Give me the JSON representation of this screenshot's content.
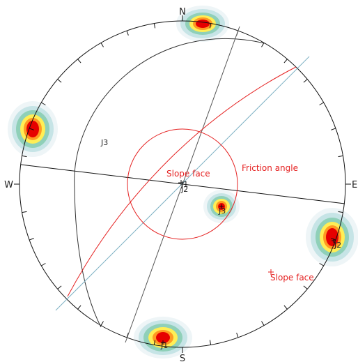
{
  "directions": {
    "north": "N",
    "south": "S",
    "east": "E",
    "west": "W"
  },
  "labels": {
    "j3_great_circle": "J3",
    "slope_face_center": "Slope face",
    "friction_angle": "Friction angle",
    "j1_center": "J1",
    "j2_center": "J2",
    "j3_pole": "J3",
    "j2_pole": "J2",
    "j1_pole": "J1",
    "slope_face_pole": "Slope face"
  },
  "colors": {
    "net_outline": "#111111",
    "great_circle_dark": "#333333",
    "slope_face_line": "#e52222",
    "friction_cone": "#e52222",
    "blue_line": "#7fb2c4",
    "contour_levels": [
      "#eef5f7",
      "#c6e4e6",
      "#8fd0b8",
      "#ffee55",
      "#ff9922",
      "#e60000"
    ]
  }
}
